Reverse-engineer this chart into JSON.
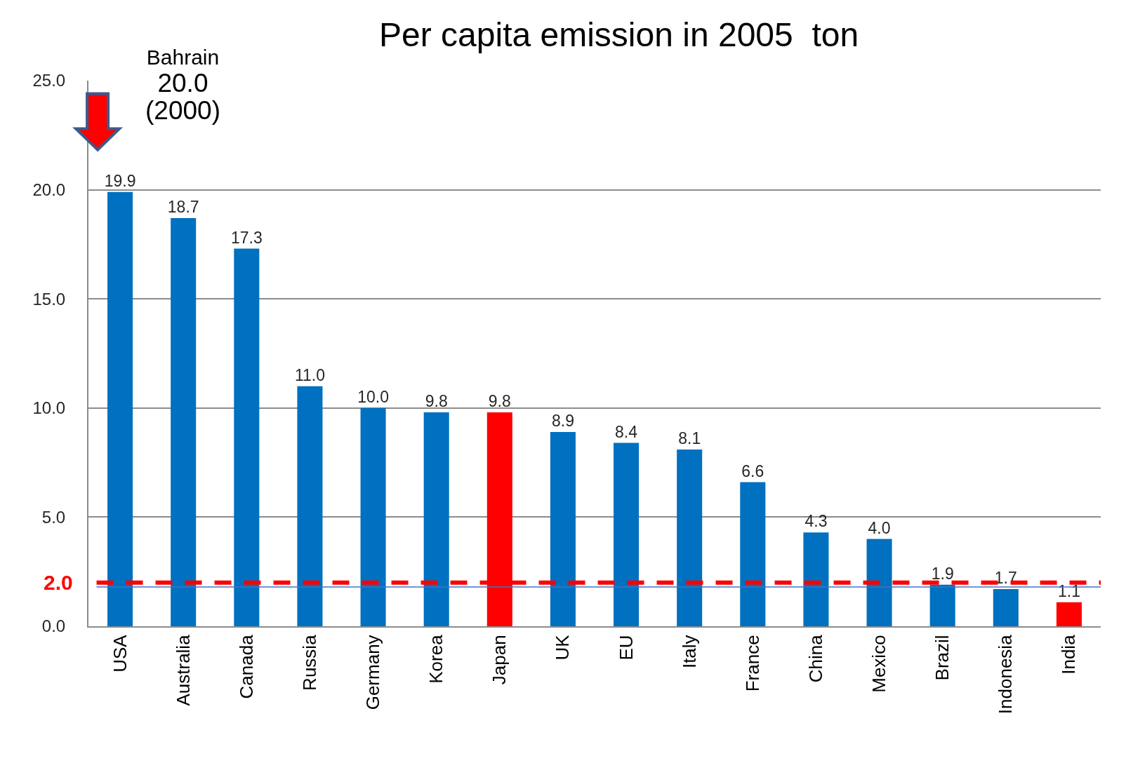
{
  "chart_data": {
    "type": "bar",
    "title": "Per capita emission in 2005  ton",
    "categories": [
      "USA",
      "Australia",
      "Canada",
      "Russia",
      "Germany",
      "Korea",
      "Japan",
      "UK",
      "EU",
      "Italy",
      "France",
      "China",
      "Mexico",
      "Brazil",
      "Indonesia",
      "India"
    ],
    "values": [
      19.9,
      18.7,
      17.3,
      11.0,
      10.0,
      9.8,
      9.8,
      8.9,
      8.4,
      8.1,
      6.6,
      4.3,
      4.0,
      1.9,
      1.7,
      1.1
    ],
    "colors": [
      "#0070c0",
      "#0070c0",
      "#0070c0",
      "#0070c0",
      "#0070c0",
      "#0070c0",
      "#ff0000",
      "#0070c0",
      "#0070c0",
      "#0070c0",
      "#0070c0",
      "#0070c0",
      "#0070c0",
      "#0070c0",
      "#0070c0",
      "#ff0000"
    ],
    "value_labels": [
      "19.9",
      "18.7",
      "17.3",
      "11.0",
      "10.0",
      "9.8",
      "9.8",
      "8.9",
      "8.4",
      "8.1",
      "6.6",
      "4.3",
      "4.0",
      "1.9",
      "1.7",
      "1.1"
    ],
    "ylim": [
      0,
      25
    ],
    "yticks": [
      {
        "value": 0,
        "label": "0.0"
      },
      {
        "value": 5,
        "label": "5.0"
      },
      {
        "value": 10,
        "label": "10.0"
      },
      {
        "value": 15,
        "label": "15.0"
      },
      {
        "value": 20,
        "label": "20.0"
      },
      {
        "value": 25,
        "label": "25.0"
      }
    ],
    "grid": "y",
    "ref_lines": [
      {
        "axis": "y",
        "value": 2.0,
        "label": "2.0",
        "color": "#ff0000",
        "line_style": "dashed"
      },
      {
        "axis": "y",
        "value": 1.8,
        "color": "#4472c4",
        "line_style": "solid"
      }
    ],
    "annotations": [
      {
        "text": "Bahrain\n20.0\n(2000)",
        "x": "USA",
        "y": 20.0
      }
    ]
  }
}
